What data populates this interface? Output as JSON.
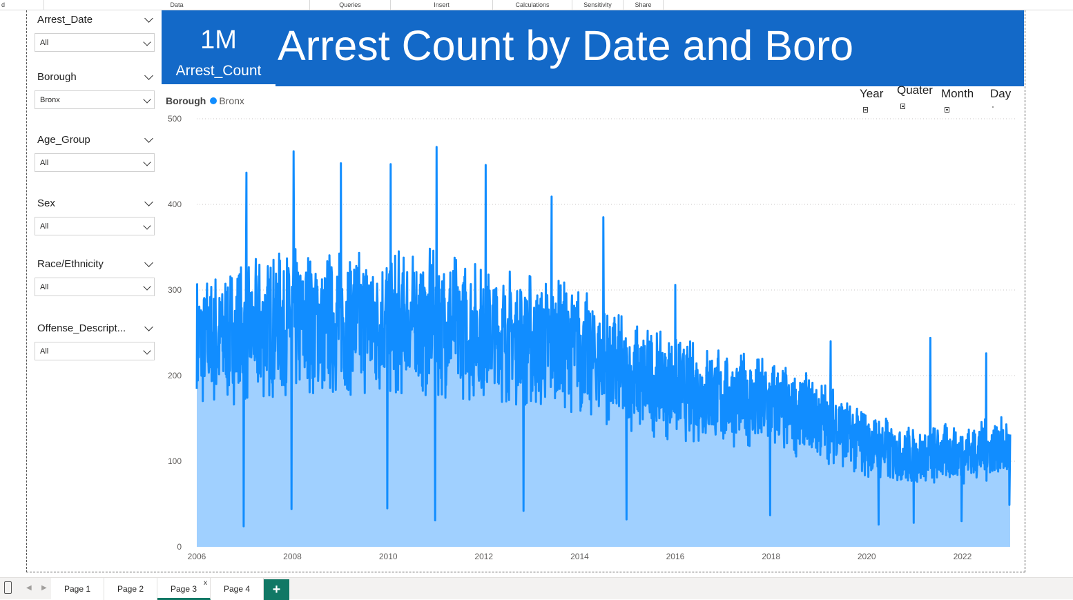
{
  "ribbon": {
    "groups": [
      "d",
      "Data",
      "Queries",
      "Insert",
      "Calculations",
      "Sensitivity",
      "Share"
    ]
  },
  "slicers": [
    {
      "title": "Arrest_Date",
      "value": "All"
    },
    {
      "title": "Borough",
      "value": "Bronx"
    },
    {
      "title": "Age_Group",
      "value": "All"
    },
    {
      "title": "Sex",
      "value": "All"
    },
    {
      "title": "Race/Ethnicity",
      "value": "All"
    },
    {
      "title": "Offense_Descript...",
      "value": "All"
    }
  ],
  "banner": {
    "kpi_value": "1M",
    "kpi_label": "Arrest_Count",
    "title": "Arrest Count by Date and Boro"
  },
  "legend": {
    "title": "Borough",
    "items": [
      "Bronx"
    ]
  },
  "drill": [
    "Year",
    "Quater",
    "Month",
    "Day"
  ],
  "tabs": {
    "pages": [
      "Page 1",
      "Page 2",
      "Page 3",
      "Page 4"
    ],
    "active": "Page 3",
    "close_glyph": "x",
    "add_glyph": "+"
  },
  "colors": {
    "banner": "#1369c8",
    "line": "#118dff",
    "area": "#a0d0ff",
    "tab_accent": "#117865"
  },
  "chart_data": {
    "type": "area",
    "title": "",
    "xlabel": "",
    "ylabel": "",
    "x_ticks": [
      "2006",
      "2008",
      "2010",
      "2012",
      "2014",
      "2016",
      "2018",
      "2020",
      "2022"
    ],
    "y_ticks": [
      0,
      100,
      200,
      300,
      400,
      500
    ],
    "xlim": [
      "2006-01-01",
      "2022-12-31"
    ],
    "ylim": [
      0,
      500
    ],
    "grid": true,
    "legend_position": "top-left",
    "series": [
      {
        "name": "Bronx",
        "trend": [
          {
            "date": "2006-01-01",
            "value": 240
          },
          {
            "date": "2007-01-01",
            "value": 250
          },
          {
            "date": "2008-01-01",
            "value": 265
          },
          {
            "date": "2009-01-01",
            "value": 262
          },
          {
            "date": "2010-01-01",
            "value": 262
          },
          {
            "date": "2011-01-01",
            "value": 262
          },
          {
            "date": "2012-01-01",
            "value": 250
          },
          {
            "date": "2013-01-01",
            "value": 242
          },
          {
            "date": "2014-01-01",
            "value": 230
          },
          {
            "date": "2015-01-01",
            "value": 200
          },
          {
            "date": "2016-01-01",
            "value": 185
          },
          {
            "date": "2017-01-01",
            "value": 175
          },
          {
            "date": "2018-01-01",
            "value": 165
          },
          {
            "date": "2019-01-01",
            "value": 150
          },
          {
            "date": "2020-01-01",
            "value": 120
          },
          {
            "date": "2021-01-01",
            "value": 105
          },
          {
            "date": "2022-01-01",
            "value": 110
          },
          {
            "date": "2022-12-31",
            "value": 115
          }
        ],
        "peaks": [
          {
            "date": "2007-01-15",
            "value": 437
          },
          {
            "date": "2008-01-10",
            "value": 462
          },
          {
            "date": "2009-01-05",
            "value": 448
          },
          {
            "date": "2010-01-20",
            "value": 447
          },
          {
            "date": "2011-01-05",
            "value": 467
          },
          {
            "date": "2012-01-15",
            "value": 446
          },
          {
            "date": "2013-06-01",
            "value": 409
          },
          {
            "date": "2014-07-01",
            "value": 385
          },
          {
            "date": "2016-01-01",
            "value": 306
          },
          {
            "date": "2019-04-01",
            "value": 240
          },
          {
            "date": "2021-05-01",
            "value": 244
          },
          {
            "date": "2022-07-01",
            "value": 226
          }
        ],
        "troughs": [
          {
            "date": "2006-12-25",
            "value": 24
          },
          {
            "date": "2007-12-25",
            "value": 44
          },
          {
            "date": "2009-12-25",
            "value": 45
          },
          {
            "date": "2010-12-25",
            "value": 31
          },
          {
            "date": "2012-10-30",
            "value": 42
          },
          {
            "date": "2014-12-25",
            "value": 32
          },
          {
            "date": "2017-12-25",
            "value": 37
          },
          {
            "date": "2020-04-01",
            "value": 26
          },
          {
            "date": "2020-12-25",
            "value": 28
          },
          {
            "date": "2021-12-25",
            "value": 30
          },
          {
            "date": "2022-12-25",
            "value": 49
          }
        ]
      }
    ]
  }
}
